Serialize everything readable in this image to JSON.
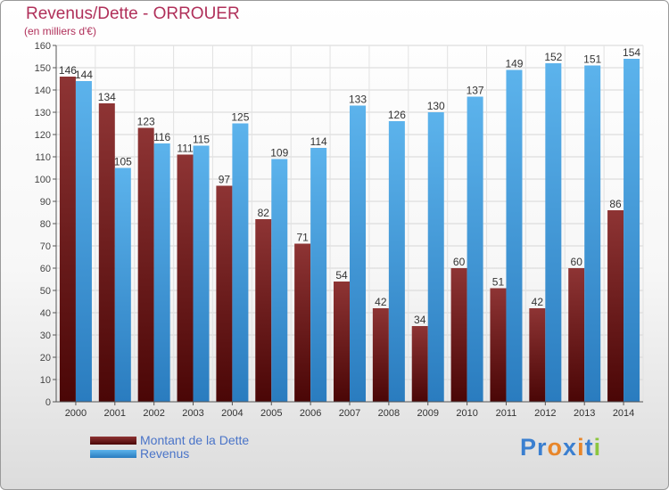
{
  "header": {
    "title": "Revenus/Dette - ORROUER",
    "subtitle": "(en milliers d'€)"
  },
  "legend": {
    "items": [
      {
        "label": "Montant de la Dette",
        "color": "#7a1c1c"
      },
      {
        "label": "Revenus",
        "color": "#4aa3e0"
      }
    ]
  },
  "logo": {
    "text": "Proxiti",
    "letters": [
      "P",
      "r",
      "o",
      "x",
      "i",
      "t",
      "i"
    ],
    "colors": [
      "#3a7fd0",
      "#3a7fd0",
      "#e8862a",
      "#3a7fd0",
      "#e8862a",
      "#3a7fd0",
      "#8cc63f"
    ]
  },
  "colors": {
    "dette": "#7a1c1c",
    "revenus": "#4aa3e0",
    "title": "#b0305a"
  },
  "chart_data": {
    "type": "bar",
    "title": "Revenus/Dette - ORROUER",
    "subtitle": "(en milliers d'€)",
    "categories": [
      "2000",
      "2001",
      "2002",
      "2003",
      "2004",
      "2005",
      "2006",
      "2007",
      "2008",
      "2009",
      "2010",
      "2011",
      "2012",
      "2013",
      "2014"
    ],
    "series": [
      {
        "name": "Montant de la Dette",
        "values": [
          146,
          134,
          123,
          111,
          97,
          82,
          71,
          54,
          42,
          34,
          60,
          51,
          42,
          60,
          86
        ]
      },
      {
        "name": "Revenus",
        "values": [
          144,
          105,
          116,
          115,
          125,
          109,
          114,
          133,
          126,
          130,
          137,
          149,
          152,
          151,
          154
        ]
      }
    ],
    "ylim": [
      0,
      160
    ],
    "yticks": [
      0,
      10,
      20,
      30,
      40,
      50,
      60,
      70,
      80,
      90,
      100,
      110,
      120,
      130,
      140,
      150,
      160
    ],
    "grid": true,
    "legend_position": "bottom-left"
  }
}
